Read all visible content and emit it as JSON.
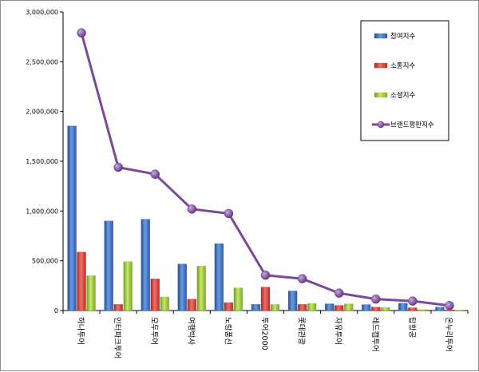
{
  "chart_data": {
    "type": "bar",
    "categories": [
      "하나투어",
      "인터파크투어",
      "모두투어",
      "여행박사",
      "노랑풍선",
      "투어2000",
      "롯데관광",
      "자유투어",
      "레드캡투어",
      "탑항공",
      "온누리투어"
    ],
    "series": [
      {
        "name": "참여지수",
        "type": "bar",
        "color": "#3a6fc4",
        "values": [
          1855000,
          900000,
          918000,
          468000,
          673000,
          62000,
          197000,
          68000,
          60000,
          75000,
          35000
        ]
      },
      {
        "name": "소통지수",
        "type": "bar",
        "color": "#d93a35",
        "values": [
          587000,
          62000,
          318000,
          115000,
          80000,
          236000,
          62000,
          52000,
          35000,
          28000,
          8000
        ]
      },
      {
        "name": "소셜지수",
        "type": "bar",
        "color": "#9bcb3a",
        "values": [
          350000,
          492000,
          137000,
          447000,
          228000,
          62000,
          72000,
          68000,
          30000,
          10000,
          5000
        ]
      },
      {
        "name": "브랜드평판지수",
        "type": "line",
        "color": "#7a4a9a",
        "values": [
          2790000,
          1440000,
          1370000,
          1020000,
          975000,
          355000,
          320000,
          175000,
          115000,
          95000,
          50000
        ]
      }
    ],
    "ylim": [
      0,
      3000000
    ],
    "yticks": [
      "0",
      "500,000",
      "1,000,000",
      "1,500,000",
      "2,000,000",
      "2,500,000",
      "3,000,000"
    ],
    "title": "",
    "xlabel": "",
    "ylabel": "",
    "grid": false,
    "legend_position": "top-right"
  }
}
